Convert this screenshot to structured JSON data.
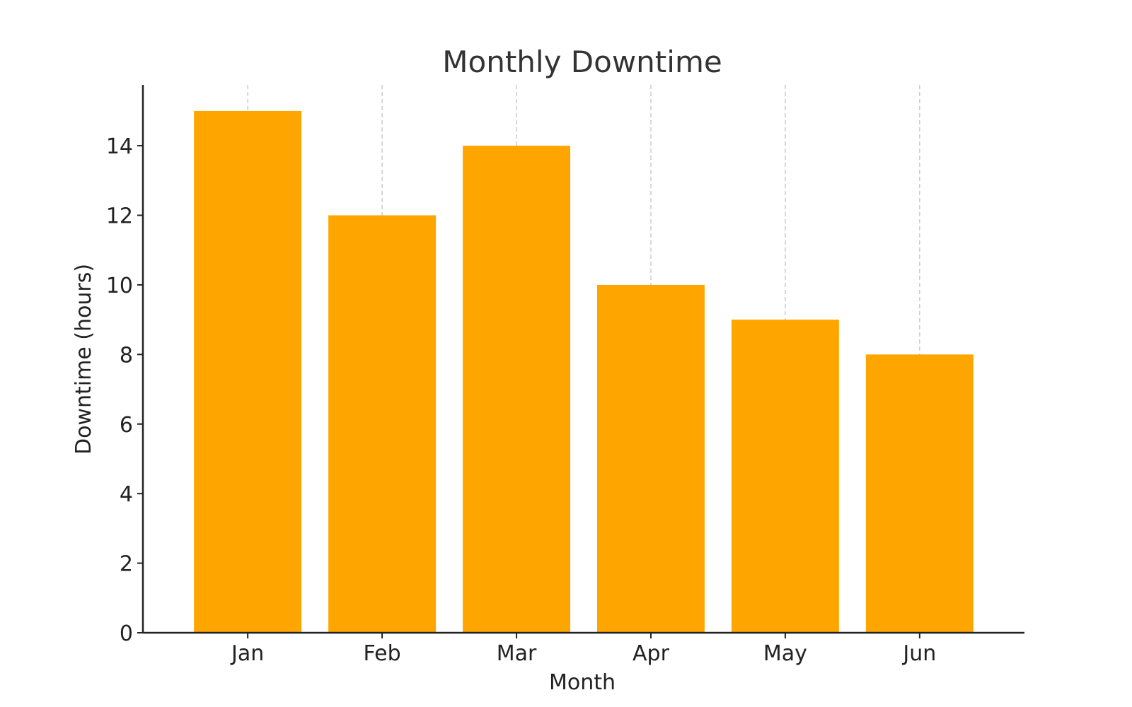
{
  "chart_data": {
    "type": "bar",
    "title": "Monthly Downtime",
    "xlabel": "Month",
    "ylabel": "Downtime (hours)",
    "categories": [
      "Jan",
      "Feb",
      "Mar",
      "Apr",
      "May",
      "Jun"
    ],
    "values": [
      15,
      12,
      14,
      10,
      9,
      8
    ],
    "ylim": [
      0,
      15.75
    ],
    "yticks": [
      0,
      2,
      4,
      6,
      8,
      10,
      12,
      14
    ],
    "grid": "vertical dashed at category centers",
    "bar_color": "#FFA500",
    "legend": "none"
  }
}
